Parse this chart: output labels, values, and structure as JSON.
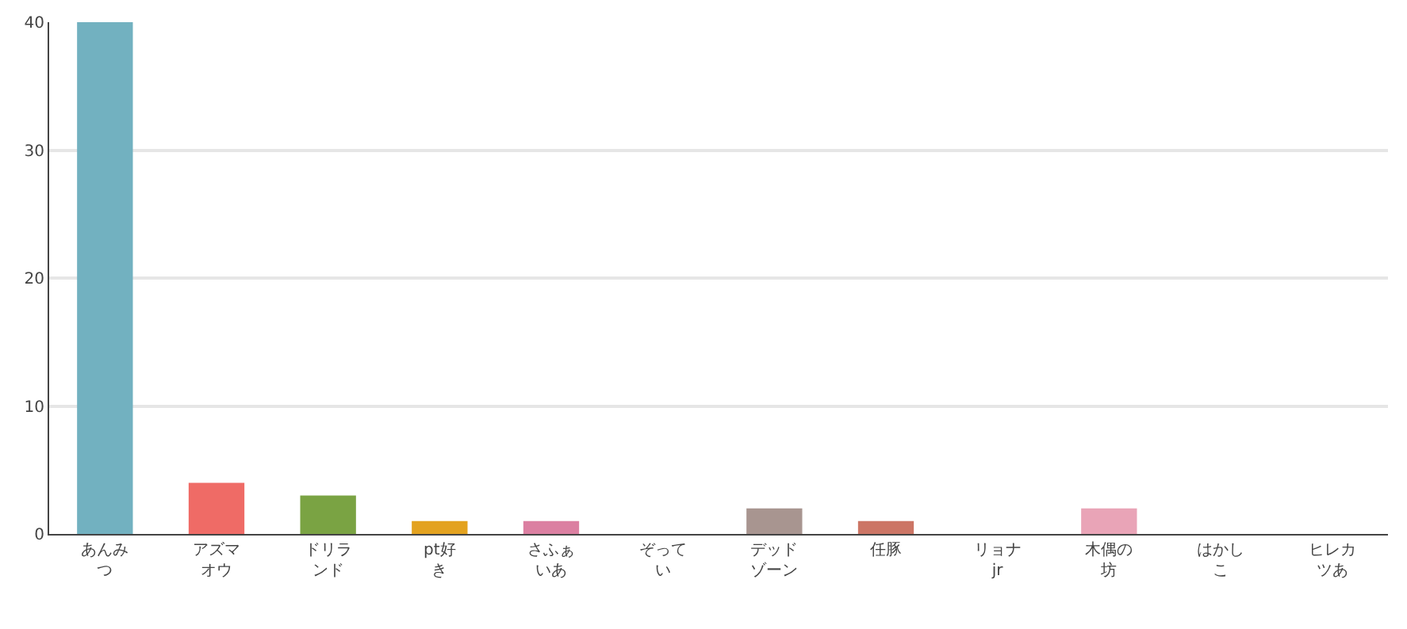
{
  "chart_data": {
    "type": "bar",
    "categories": [
      "あんみつ",
      "アズマオウ",
      "ドリランド",
      "pt好き",
      "さふぁいあ",
      "ぞってい",
      "デッドゾーン",
      "任豚",
      "リョナjr",
      "木偶の坊",
      "はかしこ",
      "ヒレカツあ"
    ],
    "values": [
      40,
      4,
      3,
      1,
      1,
      0,
      2,
      1,
      0,
      2,
      0,
      0
    ],
    "colors": [
      "#72b1c0",
      "#ef6b66",
      "#7aa343",
      "#e3a21f",
      "#db7fa1",
      "#8fb8c8",
      "#a89590",
      "#cc7565",
      "#b0b0b0",
      "#e9a4b7",
      "#9fc7a0",
      "#c8b0d8"
    ],
    "ylim": [
      0,
      40
    ],
    "yticks": [
      0,
      10,
      20,
      30,
      40
    ],
    "grid": "y"
  }
}
